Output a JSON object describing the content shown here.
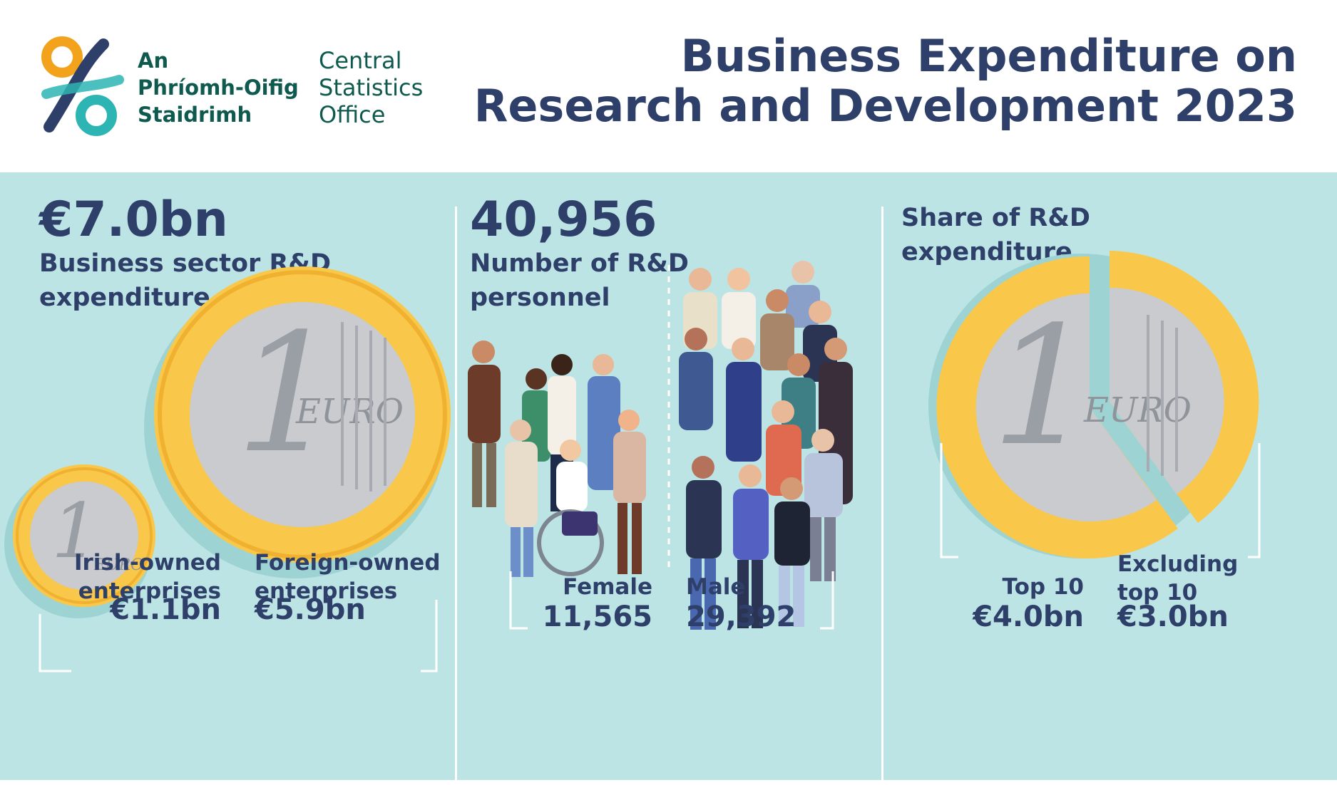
{
  "header": {
    "org_irish": [
      "An",
      "Phríomh-Oifig",
      "Staidrimh"
    ],
    "org_english": [
      "Central",
      "Statistics",
      "Office"
    ],
    "title_lines": [
      "Business Expenditure on",
      "Research and Development 2023"
    ]
  },
  "expenditure": {
    "value": "€7.0bn",
    "label_lines": [
      "Business sector R&D",
      "expenditure"
    ],
    "irish": {
      "label_lines": [
        "Irish-owned",
        "enterprises"
      ],
      "value": "€1.1bn"
    },
    "foreign": {
      "label_lines": [
        "Foreign-owned",
        "enterprises"
      ],
      "value": "€5.9bn"
    },
    "coin_text": {
      "numeral": "1",
      "word": "EURO"
    }
  },
  "personnel": {
    "value": "40,956",
    "label_lines": [
      "Number of R&D",
      "personnel"
    ],
    "female": {
      "label": "Female",
      "value": "11,565"
    },
    "male": {
      "label": "Male",
      "value": "29,392"
    }
  },
  "share": {
    "label_lines": [
      "Share of R&D",
      "expenditure"
    ],
    "top10": {
      "label": "Top 10",
      "value": "€4.0bn"
    },
    "excluding": {
      "label_lines": [
        "Excluding",
        "top 10"
      ],
      "value": "€3.0bn"
    }
  },
  "colors": {
    "navy": "#2e3f6a",
    "teal_bg": "#bde4e5",
    "coin_gold": "#f9c74a",
    "coin_silver": "#c9cbcf",
    "logo_orange": "#f2a31b",
    "logo_teal": "#2db5b3",
    "logo_green": "#0f5a4e"
  },
  "icons": [
    "csi-logo-icon",
    "euro-coin-icon",
    "people-group-icon",
    "split-coin-pie-icon"
  ]
}
